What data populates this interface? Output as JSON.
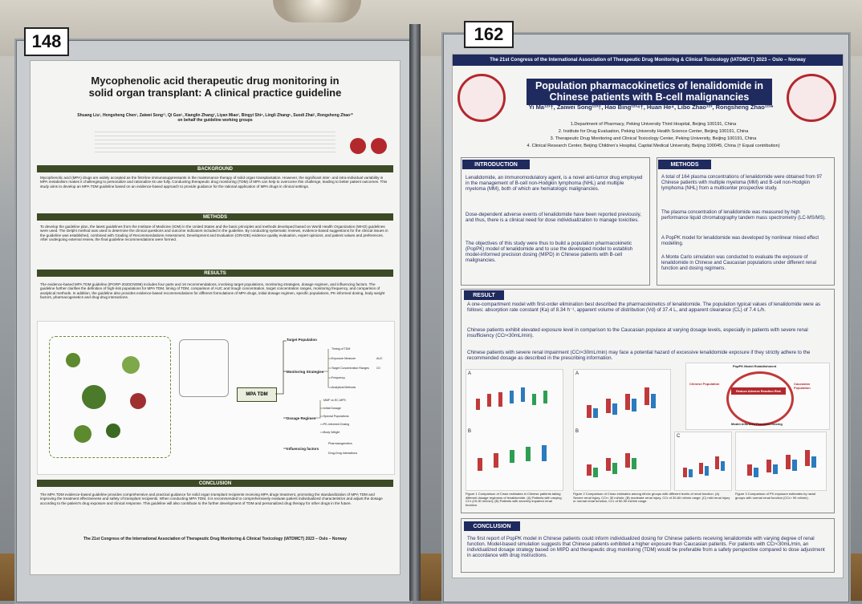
{
  "colors": {
    "left_bar": "#3d4a26",
    "right_bar": "#1f2a5e",
    "right_accent": "#b3282d"
  },
  "left": {
    "number": "148",
    "title": "Mycophenolic acid therapeutic drug monitoring in solid organ transplant: A clinical practice guideline",
    "authors": "Shuang Liu¹, Hongsheng Chen¹, Zaiwei Song¹², Qi Guo¹, Xianglin Zhang³, Liyan Miao³, Bingyi Shi⁴, Lingli Zhang⁵, Suodi Zhai¹, Rongsheng Zhao¹* on behalf the guideline working groups",
    "background_title": "BACKGROUND",
    "background": "Mycophenolic acid (MPA) drugs are widely accepted as the first-line immunosuppressants in the maintenance therapy of solid organ transplantation. However, the significant inter- and intra-individual variability in MPA metabolism makes it challenging to personalize and rationalize its use fully. Conducting therapeutic drug monitoring (TDM) of MPA can help to overcome this challenge, leading to better patient outcomes. This study aims to develop an MPA TDM guideline based on an evidence-based approach to provide guidance for the rational application of MPA drugs in clinical settings.",
    "methods_title": "METHODS",
    "methods": "To develop the guideline plan, the latest guidelines from the Institute of Medicine (IOM) in the United States and the basic principles and methods developed based on World Health Organization (WHO) guidelines were used. The Delphi method was used to determine the clinical questions and outcome indicators included in the guideline. By conducting systematic reviews, evidence-based suggestions for the clinical issues in the guideline was established, combined with Grading of Recommendations Assessment, Development and Evaluation (GRADE) evidence quality evaluation, expert opinions, and patient values and preferences. After undergoing external review, the final guideline recommendations were formed.",
    "results_title": "RESULTS",
    "results": "The evidence-based MPA TDM guideline (IPGRP-2020CN099) includes four parts and 16 recommendations, involving target populations, monitoring strategies, dosage regimen, and influencing factors. The guideline further clarifies the definition of high-risk populations for MPA TDM, timing of TDM, comparison of AUC and trough concentration, target concentration ranges, monitoring frequency, and comparison of analytical methods. In addition, the guideline also provides evidence-based recommendations for different formulations of MPA drugs, initial dosage regimen, specific populations, PK-informed dosing, body weight factors, pharmacogenetics and drug-drug interactions.",
    "mindmap": {
      "center": "MPA TDM",
      "branches": [
        "Target Population",
        "Monitoring Strategies",
        "Dosage Regimen",
        "Influencing factors"
      ],
      "leaves": [
        "Timing of TDM",
        "Exposure Measure",
        "Target Concentration Ranges",
        "Frequency",
        "Analytical Methods",
        "MMF vs EC-MPS",
        "Initial Dosage",
        "Special Populations",
        "PK-informed Dosing",
        "Body Weight",
        "Pharmacogenetics",
        "Drug-Drug interactions"
      ],
      "auc": "AUC",
      "c0": "C0"
    },
    "conclusion_title": "CONCLUSION",
    "conclusion": "The MPA TDM evidence-based guideline provides comprehensive and practical guidance for solid organ transplant recipients receiving MPA drugs treatment, promoting the standardization of MPA TDM and improving the treatment effectiveness and safety of transplant recipients. When conducting MPA TDM, it is recommended to comprehensively evaluate patient individualized characteristics and adjust the dosage according to the patient's drug exposure and clinical response. This guideline will also contribute to the further development of TDM and personalized drug therapy for other drugs in the future.",
    "footer": "The 21st Congress of the International Association of Therapeutic Drug Monitoring & Clinical Toxicology (IATDMCT) 2023 – Oslo – Norway"
  },
  "right": {
    "number": "162",
    "banner": "The 21st Congress of the International Association of Therapeutic Drug Monitoring & Clinical Toxicology (IATDMCT) 2023 – Oslo – Norway",
    "title": "Population pharmacokinetics of lenalidomide in Chinese patients with B-cell malignancies",
    "authors": "Yi Ma¹²³†, Zaiwei Song¹²³†, Hao Bing¹²³⁴†, Huan He⁴, Libo Zhao¹²³, Rongsheng Zhao¹²³*",
    "affiliations": [
      "1.Department of Pharmacy, Peking University Third Hospital, Beijing 100191, China",
      "2. Institute for Drug Evaluation, Peking University Health Science Center, Beijing 100191, China",
      "3. Therapeutic Drug Monitoring and Clinical Toxicology Center, Peking University, Beijing 100191, China",
      "4. Clinical Research Center, Beijing Children's Hospital, Capital Medical University, Beijing 100045, China († Equal contribution)"
    ],
    "intro_title": "INTRODUCTION",
    "intro": [
      "Lenalidomide, an immunomodulatory agent, is a novel anti-tumor drug employed in the management of B-cell non-Hodgkin lymphoma (NHL) and multiple myeloma (MM), both of which are hematologic malignancies.",
      "Dose-dependent adverse events of lenalidomide have been reported previously, and thus, there is a clinical need for dose individualization to manage toxicities.",
      "The objectives of this study were thus to build a population pharmacokinetic (PopPK) model of lenalidomide and to use the developed model to establish model-informed precision dosing (MIPD) in Chinese patients with B-cell malignancies."
    ],
    "methods_title": "METHODS",
    "methods": [
      "A total of 164 plasma concentrations of lenalidomide were obtained from 97 Chinese patients with multiple myeloma (MM) and B-cell non-Hodgkin lymphoma (NHL) from a multicenter prospective study.",
      "The plasma concentration of lenalidomide was measured by high performance liquid chromatography tandem mass spectrometry (LC-MS/MS).",
      "A PopPK model for lenalidomide was developed by nonlinear mixed effect modelling.",
      "A Monte Carlo simulation was conducted to evaluate the exposure of lenalidomide in Chinese and Caucasian populations under different renal function and dosing regimens."
    ],
    "result_title": "RESULT",
    "result": [
      "A one-compartment model with first-order elimination best described the pharmacokinetics of lenalidomide. The population typical values of lenalidomide were as follows: absorption rate constant (Ka) of 8.34 h⁻¹, apparent volume of distribution (Vd) of 37.4 L, and apparent clearance (CL) of 7.4 L/h.",
      "Chinese patients exhibit elevated exposure level in comparison to the Caucasian populace at varying dosage levels, especially in patients with severe renal insufficiency (CCr<30mL/min).",
      "Chinese patients with severe renal impairment (CCr<30mL/min) may face a potential hazard of excessive lenalidomide exposure if they strictly adhere to the recommended dosage as described in the prescribing information."
    ],
    "fig_labels": [
      "A",
      "B",
      "C"
    ],
    "captions": [
      "Figure 1 Comparison of Cmax estimates in Chinese patients taking different dosage regimens of lenalidomide. (A) Patients with varying CCr (15-30 ml/min); (B) Patients with severely impaired renal function.",
      "Figure 2 Comparison of Cmax estimates among ethnic groups with different levels of renal function. (A) Severe renal injury, CCr< 30 ml/min; (B) moderate renal injury, CCr of 30-60 ml/min range; (C) mild renal injury or normal renal function, CCr of 60-90 ml/min range.",
      "Figure 3 Comparison of PK exposure estimates by racial groups with normal renal function (CCr> 90 ml/min)."
    ],
    "diagram": {
      "top": "PopPK Model Establishment",
      "risk": "Reduce Adverse Reaction Risk",
      "bottom": "Model-informed Precision Dosing",
      "left": "Chinese Population",
      "right": "Caucasian Population"
    },
    "conclusion_title": "CONCLUSION",
    "conclusion": "The first report of PopPK model in Chinese patients could inform individualized dosing for Chinese patients receiving lenalidomide with varying degree of renal function. Model-based simulation suggests that Chinese patients exhibited a higher exposure than Caucasian patients. For patients with CCr<30mL/min, an individualized dosage strategy based on MIPD and therapeutic drug monitoring (TDM) would be preferable from a safety perspective compared to dose adjustment in accordance with drug instructions."
  }
}
